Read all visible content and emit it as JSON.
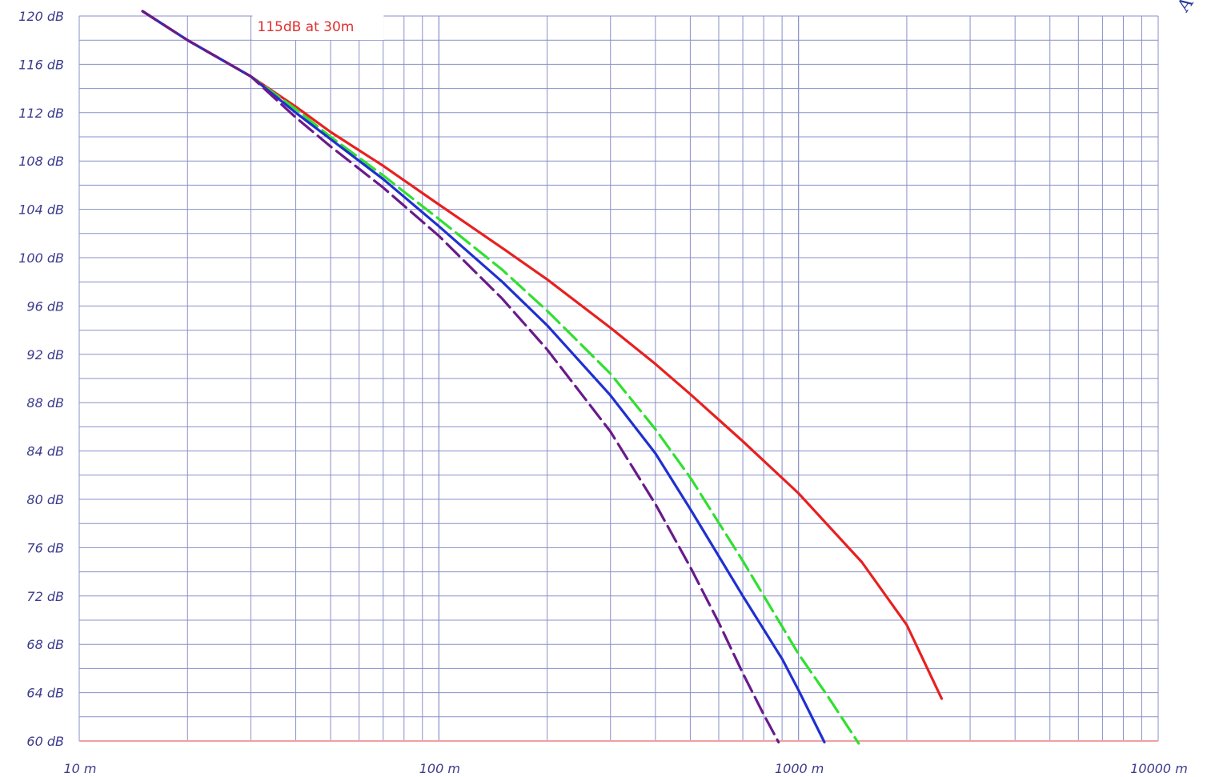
{
  "chart_data": {
    "type": "line",
    "title": "",
    "xlabel": "",
    "ylabel": "",
    "x_scale": "log",
    "xlim": [
      10,
      10000
    ],
    "ylim": [
      60,
      120
    ],
    "grid": true,
    "x_tick_labels": [
      {
        "value": 10,
        "label": "10 m"
      },
      {
        "value": 100,
        "label": "100 m"
      },
      {
        "value": 1000,
        "label": "1000 m"
      },
      {
        "value": 10000,
        "label": "10000 m"
      }
    ],
    "y_tick_labels": [
      {
        "value": 120,
        "label": "120 dB"
      },
      {
        "value": 116,
        "label": "116 dB"
      },
      {
        "value": 112,
        "label": "112 dB"
      },
      {
        "value": 108,
        "label": "108 dB"
      },
      {
        "value": 104,
        "label": "104 dB"
      },
      {
        "value": 100,
        "label": "100 dB"
      },
      {
        "value": 96,
        "label": "96 dB"
      },
      {
        "value": 92,
        "label": "92 dB"
      },
      {
        "value": 88,
        "label": "88 dB"
      },
      {
        "value": 84,
        "label": "84 dB"
      },
      {
        "value": 80,
        "label": "80 dB"
      },
      {
        "value": 76,
        "label": "76 dB"
      },
      {
        "value": 72,
        "label": "72 dB"
      },
      {
        "value": 68,
        "label": "68 dB"
      },
      {
        "value": 64,
        "label": "64 dB"
      },
      {
        "value": 60,
        "label": "60 dB"
      }
    ],
    "annotation": {
      "text": "115dB at 30m",
      "x": 30,
      "y": 115
    },
    "corner_mark": "A",
    "series": [
      {
        "color": "#e82020",
        "dash": "solid",
        "x": [
          15,
          20,
          30,
          40,
          50,
          70,
          100,
          150,
          200,
          300,
          400,
          500,
          700,
          1000,
          1500,
          2000,
          2500
        ],
        "y": [
          120.4,
          118.0,
          115.0,
          112.5,
          110.4,
          107.6,
          104.4,
          100.8,
          98.2,
          94.2,
          91.2,
          88.7,
          84.8,
          80.5,
          74.8,
          69.6,
          63.5
        ]
      },
      {
        "color": "#30e030",
        "dash": "dashed",
        "x": [
          15,
          20,
          30,
          40,
          50,
          70,
          100,
          150,
          200,
          300,
          400,
          500,
          700,
          1000,
          1200,
          1470
        ],
        "y": [
          120.4,
          118.0,
          115.0,
          112.3,
          110.0,
          106.8,
          103.2,
          99.0,
          95.6,
          90.4,
          85.8,
          81.8,
          74.9,
          67.2,
          63.8,
          59.8
        ]
      },
      {
        "color": "#2030d0",
        "dash": "solid",
        "x": [
          15,
          20,
          30,
          40,
          50,
          70,
          100,
          150,
          200,
          300,
          400,
          500,
          700,
          900,
          1000,
          1180
        ],
        "y": [
          120.4,
          118.0,
          115.0,
          112.0,
          109.8,
          106.5,
          102.6,
          98.0,
          94.4,
          88.6,
          83.8,
          79.2,
          72.0,
          66.8,
          64.2,
          59.9
        ]
      },
      {
        "color": "#6a1a8a",
        "dash": "dashed",
        "x": [
          15,
          20,
          30,
          40,
          50,
          70,
          100,
          150,
          200,
          300,
          400,
          500,
          600,
          700,
          800,
          880
        ],
        "y": [
          120.4,
          118.0,
          115.0,
          111.6,
          109.2,
          105.8,
          101.8,
          96.6,
          92.4,
          85.6,
          79.6,
          74.4,
          69.8,
          65.6,
          62.2,
          59.9
        ]
      }
    ]
  }
}
